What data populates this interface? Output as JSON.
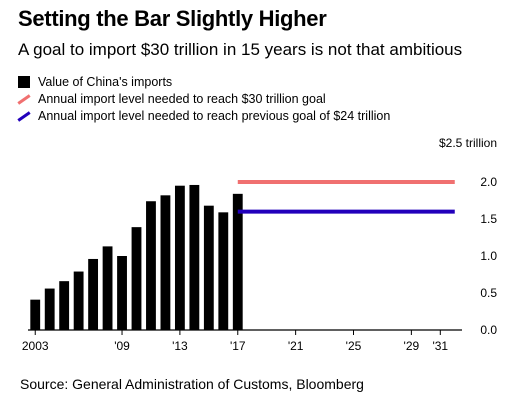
{
  "title": "Setting the Bar Slightly Higher",
  "subtitle": "A goal to import $30 trillion in 15 years is not that ambitious",
  "source": "Source: General Administration of Customs, Bloomberg",
  "colors": {
    "bars": "#000000",
    "goal_30": "#f07070",
    "goal_24": "#2200bb",
    "axis": "#000000"
  },
  "legend": [
    {
      "label": "Value of China's imports",
      "type": "box",
      "color": "#000000"
    },
    {
      "label": "Annual import level needed to reach $30 trillion goal",
      "type": "line",
      "color": "#f07070"
    },
    {
      "label": "Annual import level needed to reach previous goal of $24 trillion",
      "type": "line",
      "color": "#2200bb"
    }
  ],
  "chart_data": {
    "type": "bar",
    "x": [
      2003,
      2004,
      2005,
      2006,
      2007,
      2008,
      2009,
      2010,
      2011,
      2012,
      2013,
      2014,
      2015,
      2016,
      2017
    ],
    "values": [
      0.41,
      0.56,
      0.66,
      0.79,
      0.96,
      1.13,
      1.0,
      1.39,
      1.74,
      1.82,
      1.95,
      1.96,
      1.68,
      1.59,
      1.84
    ],
    "series_name": "Value of China's imports",
    "reference_lines": [
      {
        "name": "Annual import level needed to reach $30 trillion goal",
        "value": 2.0,
        "x_start": 2017,
        "x_end": 2032,
        "color": "#f07070"
      },
      {
        "name": "Annual import level needed to reach previous goal of $24 trillion",
        "value": 1.6,
        "x_start": 2017,
        "x_end": 2032,
        "color": "#2200bb"
      }
    ],
    "x_ticks": [
      {
        "value": 2003,
        "label": "2003"
      },
      {
        "value": 2009,
        "label": "'09"
      },
      {
        "value": 2013,
        "label": "'13"
      },
      {
        "value": 2017,
        "label": "'17"
      },
      {
        "value": 2021,
        "label": "'21"
      },
      {
        "value": 2025,
        "label": "'25"
      },
      {
        "value": 2029,
        "label": "'29"
      },
      {
        "value": 2031,
        "label": "'31"
      }
    ],
    "y_ticks": [
      {
        "value": 0.0,
        "label": "0.0"
      },
      {
        "value": 0.5,
        "label": "0.5"
      },
      {
        "value": 1.0,
        "label": "1.0"
      },
      {
        "value": 1.5,
        "label": "1.5"
      },
      {
        "value": 2.0,
        "label": "2.0"
      }
    ],
    "y_unit_label": "$2.5 trillion",
    "xlim": [
      2002.5,
      2032.5
    ],
    "ylim": [
      0,
      2.5
    ],
    "y_axis_position": "right",
    "grid": false
  }
}
